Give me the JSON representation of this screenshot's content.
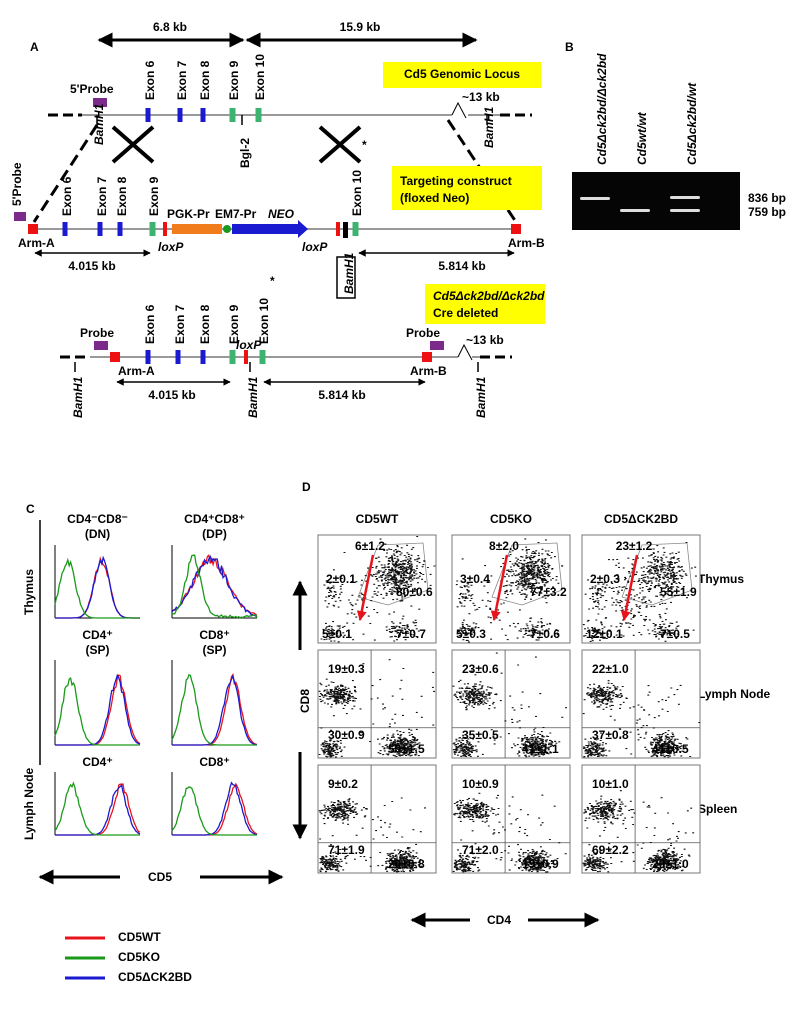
{
  "panel_a": {
    "label": "A",
    "distances": [
      "6.8 kb",
      "15.9 kb"
    ],
    "locus": {
      "title": "Cd5 Genomic Locus",
      "probe": "5'Probe",
      "exons": [
        "Exon 6",
        "Exon 7",
        "Exon 8",
        "Exon 9",
        "Exon 10"
      ],
      "bgl": "Bgl-2",
      "bamh1": [
        "BamH1",
        "BamH1"
      ],
      "gap": "~13 kb"
    },
    "construct": {
      "title": [
        "Targeting    construct",
        "(floxed Neo)"
      ],
      "probe": "5'Probe",
      "exons": [
        "Exon 6",
        "Exon 7",
        "Exon 8",
        "Exon 9",
        "Exon 10"
      ],
      "star": "*",
      "cassette": [
        "PGK-Pr",
        "EM7-Pr",
        "NEO"
      ],
      "loxp": [
        "loxP",
        "loxP"
      ],
      "arms": [
        "Arm-A",
        "Arm-B"
      ],
      "distances": [
        "4.015 kb",
        "5.814 kb"
      ],
      "bamh1": "BamH1"
    },
    "deleted": {
      "title": [
        "Cd5Δck2bd/Δck2bd",
        "Cre deleted"
      ],
      "probes": [
        "Probe",
        "Probe"
      ],
      "exons": [
        "Exon 6",
        "Exon 7",
        "Exon 8",
        "Exon 9",
        "Exon 10"
      ],
      "star": "*",
      "loxp": "loxP",
      "arms": [
        "Arm-A",
        "Arm-B"
      ],
      "distances": [
        "4.015 kb",
        "5.814 kb"
      ],
      "bamh1": [
        "BamH1",
        "BamH1",
        "BamH1"
      ],
      "gap": "~13 kb"
    }
  },
  "panel_b": {
    "label": "B",
    "lanes": [
      "Cd5Δck2bd/Δck2bd",
      "Cd5wt/wt",
      "Cd5Δck2bd/wt"
    ],
    "bands": [
      "836 bp",
      "759 bp"
    ]
  },
  "panel_c": {
    "label": "C",
    "plots": [
      {
        "title": [
          "CD4⁻CD8⁻",
          "(DN)"
        ]
      },
      {
        "title": [
          "CD4⁺CD8⁺",
          "(DP)"
        ]
      },
      {
        "title": [
          "CD4⁺",
          "(SP)"
        ]
      },
      {
        "title": [
          "CD8⁺",
          "(SP)"
        ]
      },
      {
        "title": [
          "CD4⁺"
        ]
      },
      {
        "title": [
          "CD8⁺"
        ]
      }
    ],
    "rows": [
      "Thymus",
      "Lymph Node"
    ],
    "x_label": "CD5",
    "legend": [
      {
        "name": "CD5WT",
        "color": "#e8141c"
      },
      {
        "name": "CD5KO",
        "color": "#1a9a1a"
      },
      {
        "name": "CD5ΔCK2BD",
        "color": "#1a1ad0"
      }
    ]
  },
  "panel_d": {
    "label": "D",
    "columns": [
      "CD5WT",
      "CD5KO",
      "CD5ΔCK2BD"
    ],
    "rows": [
      "Thymus",
      "Lymph Node",
      "Spleen"
    ],
    "x_label": "CD4",
    "y_label": "CD8",
    "cells": [
      [
        [
          "6±1.2",
          "2±0.1",
          "80±0.6",
          "5±0.1",
          "7±0.7"
        ],
        [
          "8±2.0",
          "3±0.4",
          "77±3.2",
          "5±0.3",
          "7±0.6"
        ],
        [
          "23±1.2",
          "2±0.3",
          "55±1.9",
          "12±0.1",
          "7±0.5"
        ]
      ],
      [
        [
          "19±0.3",
          "30±0.9",
          "50±1.5"
        ],
        [
          "23±0.6",
          "35±0.5",
          "41±1.1"
        ],
        [
          "22±1.0",
          "37±0.8",
          "41±0.5"
        ]
      ],
      [
        [
          "9±0.2",
          "71±1.9",
          "20±0.8"
        ],
        [
          "10±0.9",
          "71±2.0",
          "19±0.9"
        ],
        [
          "10±1.0",
          "69±2.2",
          "20±1.0"
        ]
      ]
    ]
  }
}
